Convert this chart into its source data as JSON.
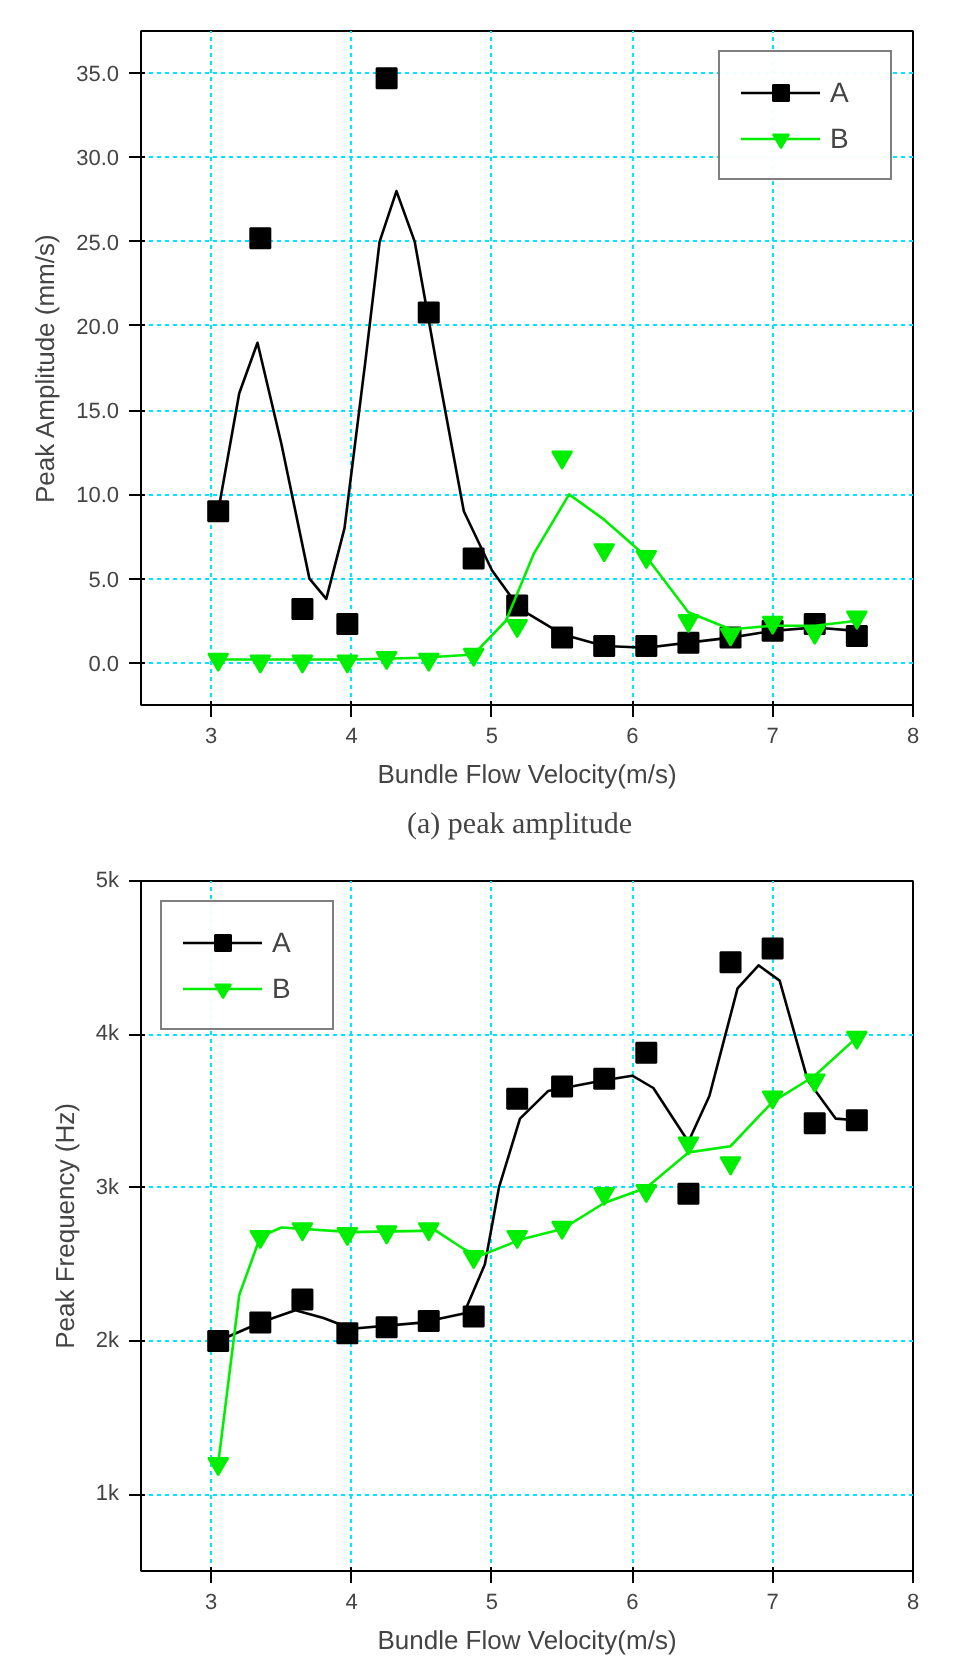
{
  "chart_data": [
    {
      "type": "scatter",
      "xlabel": "Bundle Flow Velocity(m/s)",
      "ylabel": "Peak Amplitude (mm/s)",
      "annotations": [
        "(a)  peak  amplitude"
      ],
      "xlim": [
        2.5,
        8
      ],
      "xticks": [
        3,
        4,
        5,
        6,
        7,
        8
      ],
      "ylim": [
        -2.5,
        37.5
      ],
      "yticks": [
        {
          "value": 0,
          "label": "0.0"
        },
        {
          "value": 5,
          "label": "5.0"
        },
        {
          "value": 10,
          "label": "10.0"
        },
        {
          "value": 15,
          "label": "15.0"
        },
        {
          "value": 20,
          "label": "20.0"
        },
        {
          "value": 25,
          "label": "25.0"
        },
        {
          "value": 30,
          "label": "30.0"
        },
        {
          "value": 35,
          "label": "35.0"
        }
      ],
      "grid": true,
      "legend": "top right",
      "x": [
        3.05,
        3.35,
        3.65,
        3.97,
        4.25,
        4.55,
        4.87,
        5.18,
        5.5,
        5.8,
        6.1,
        6.4,
        6.7,
        7.0,
        7.3,
        7.6
      ],
      "series": [
        {
          "name": "A",
          "color": "#000000",
          "marker": "square",
          "values": [
            9.0,
            25.2,
            3.2,
            2.3,
            34.7,
            20.8,
            6.2,
            3.4,
            1.5,
            1.0,
            1.0,
            1.2,
            1.5,
            1.9,
            2.3,
            1.6
          ]
        },
        {
          "type": "line",
          "color": "#000000",
          "marker": "none",
          "x": [
            3.05,
            3.2,
            3.33,
            3.5,
            3.7,
            3.82,
            3.95,
            4.1,
            4.2,
            4.32,
            4.45,
            4.6,
            4.8,
            5.0,
            5.2,
            5.5,
            5.8,
            6.1,
            6.4,
            6.7,
            7.0,
            7.3,
            7.6
          ],
          "values": [
            9,
            16,
            19,
            13,
            5,
            3.8,
            8,
            18,
            25,
            28,
            25,
            18,
            9,
            5.5,
            3.2,
            1.7,
            1.0,
            0.9,
            1.2,
            1.5,
            1.9,
            2.1,
            1.9
          ]
        },
        {
          "name": "B",
          "color": "#00ee00",
          "marker": "triangle",
          "values": [
            0.2,
            0.1,
            0.1,
            0.1,
            0.3,
            0.2,
            0.5,
            2.2,
            12.2,
            6.7,
            6.3,
            2.5,
            1.7,
            2.4,
            1.8,
            2.7
          ]
        },
        {
          "type": "line",
          "color": "#00ee00",
          "marker": "none",
          "x": [
            3.05,
            3.5,
            4.0,
            4.5,
            4.87,
            5.1,
            5.3,
            5.55,
            5.8,
            6.1,
            6.4,
            6.7,
            7.0,
            7.3,
            7.6
          ],
          "values": [
            0.2,
            0.2,
            0.2,
            0.3,
            0.5,
            2.5,
            6.5,
            10.0,
            8.5,
            6.3,
            3.0,
            2.0,
            2.2,
            2.2,
            2.5
          ]
        }
      ]
    },
    {
      "type": "scatter",
      "xlabel": "Bundle Flow Velocity(m/s)",
      "ylabel": "Peak Frequency (Hz)",
      "xlim": [
        2.5,
        8
      ],
      "xticks": [
        3,
        4,
        5,
        6,
        7,
        8
      ],
      "ylim": [
        500,
        5000
      ],
      "yticks": [
        {
          "value": 1000,
          "label": "1k"
        },
        {
          "value": 2000,
          "label": "2k"
        },
        {
          "value": 3000,
          "label": "3k"
        },
        {
          "value": 4000,
          "label": "4k"
        },
        {
          "value": 5000,
          "label": "5k"
        }
      ],
      "grid": true,
      "legend": "top left",
      "x": [
        3.05,
        3.35,
        3.65,
        3.97,
        4.25,
        4.55,
        4.87,
        5.18,
        5.5,
        5.8,
        6.1,
        6.4,
        6.7,
        7.0,
        7.3,
        7.6
      ],
      "series": [
        {
          "name": "A",
          "color": "#000000",
          "marker": "square",
          "values": [
            2000,
            2120,
            2270,
            2050,
            2090,
            2130,
            2160,
            3580,
            3660,
            3710,
            3880,
            2960,
            4470,
            4560,
            3420,
            3440
          ]
        },
        {
          "type": "line",
          "color": "#000000",
          "marker": "none",
          "x": [
            3.05,
            3.35,
            3.6,
            3.8,
            4.0,
            4.5,
            4.8,
            4.95,
            5.05,
            5.2,
            5.4,
            5.8,
            6.0,
            6.15,
            6.4,
            6.55,
            6.75,
            6.9,
            7.05,
            7.25,
            7.45,
            7.6
          ],
          "values": [
            2000,
            2120,
            2200,
            2150,
            2080,
            2120,
            2180,
            2500,
            3000,
            3450,
            3630,
            3700,
            3730,
            3650,
            3300,
            3600,
            4300,
            4450,
            4350,
            3700,
            3450,
            3440
          ]
        },
        {
          "name": "B",
          "color": "#00ee00",
          "marker": "triangle",
          "values": [
            1200,
            2680,
            2730,
            2700,
            2710,
            2730,
            2550,
            2680,
            2740,
            2960,
            2980,
            3290,
            3160,
            3590,
            3700,
            3980
          ]
        },
        {
          "type": "line",
          "color": "#00ee00",
          "marker": "none",
          "x": [
            3.05,
            3.2,
            3.35,
            3.5,
            4.0,
            4.6,
            4.8,
            4.9,
            5.2,
            5.5,
            5.8,
            6.1,
            6.4,
            6.7,
            7.0,
            7.3,
            7.6
          ],
          "values": [
            1200,
            2300,
            2680,
            2740,
            2710,
            2720,
            2600,
            2550,
            2660,
            2730,
            2900,
            3000,
            3230,
            3270,
            3560,
            3730,
            3980
          ]
        }
      ]
    }
  ]
}
